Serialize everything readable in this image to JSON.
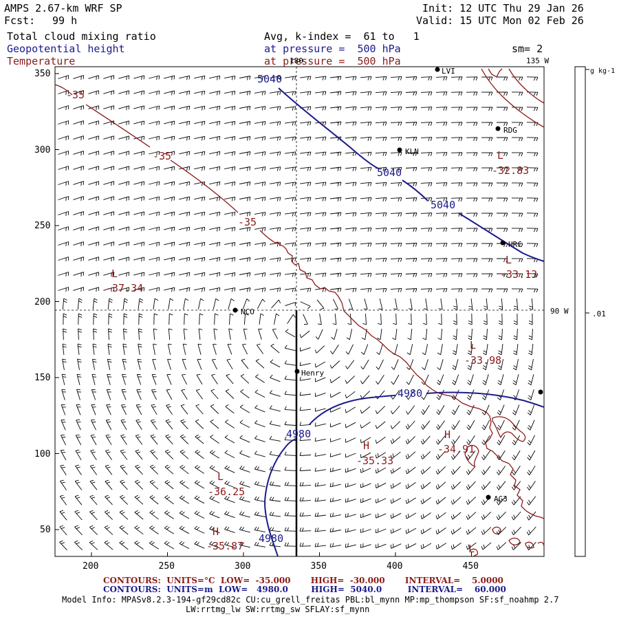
{
  "header": {
    "model": "AMPS 2.67-km WRF SP",
    "fcst_label": "Fcst:",
    "fcst_value": "99 h",
    "init": "Init: 12 UTC Thu 29 Jan 26",
    "valid": "Valid: 15 UTC Mon 02 Feb 26",
    "field1": "Total cloud mixing ratio",
    "field1_detail": "Avg, k-index =  61 to   1",
    "field2": "Geopotential height",
    "field2_detail": "at pressure =  500 hPa",
    "field3": "Temperature",
    "field3_detail": "at pressure =  500 hPa",
    "smoothing": "sm= 2"
  },
  "map": {
    "x_ticks": [
      "200",
      "250",
      "300",
      "350",
      "400",
      "450"
    ],
    "y_ticks": [
      "50",
      "100",
      "150",
      "200",
      "250",
      "300",
      "350"
    ],
    "longitude_labels": [
      "180",
      "135 W",
      "90 W"
    ],
    "stations": [
      "KLN",
      "RDG",
      "HRC",
      "NCO",
      "Henry",
      "AG3",
      "LVI"
    ],
    "height_contour_labels": [
      "5040",
      "5040",
      "5040",
      "4980",
      "4980",
      "4980"
    ],
    "temperature_contour_labels": [
      "-35",
      "-35",
      "-35"
    ],
    "lows_highs": [
      {
        "letter": "L",
        "value": "-32.83"
      },
      {
        "letter": "L",
        "value": "-33.13"
      },
      {
        "letter": "L",
        "value": "-37.34"
      },
      {
        "letter": "L",
        "value": "-33.98"
      },
      {
        "letter": "H",
        "value": "-34.91"
      },
      {
        "letter": "H",
        "value": "-35.33"
      },
      {
        "letter": "L",
        "value": "-36.25"
      },
      {
        "letter": "H",
        "value": "-35.87"
      },
      {
        "letter": "L",
        "value": ""
      }
    ]
  },
  "colorbar": {
    "unit": "g kg-1",
    "value_label": ".01"
  },
  "footer": {
    "temp_contours": "CONTOURS:  UNITS=°C  LOW=  -35.000       HIGH=  -30.000       INTERVAL=    5.0000",
    "height_contours": "CONTOURS:  UNITS=m  LOW=   4980.0        HIGH=  5040.0         INTERVAL=    60.000",
    "model_info": "Model Info: MPASv8.2.3-194-gf29cd82c CU:cu_grell_freitas PBL:bl_mynn MP:mp_thompson SF:sf_noahmp 2.7",
    "model_info2": "LW:rrtmg_lw SW:rrtmg_sw SFLAY:sf_mynn"
  },
  "colors": {
    "height": "#1a1a8c",
    "temperature": "#8b1a1a",
    "barbs": "#000000"
  }
}
